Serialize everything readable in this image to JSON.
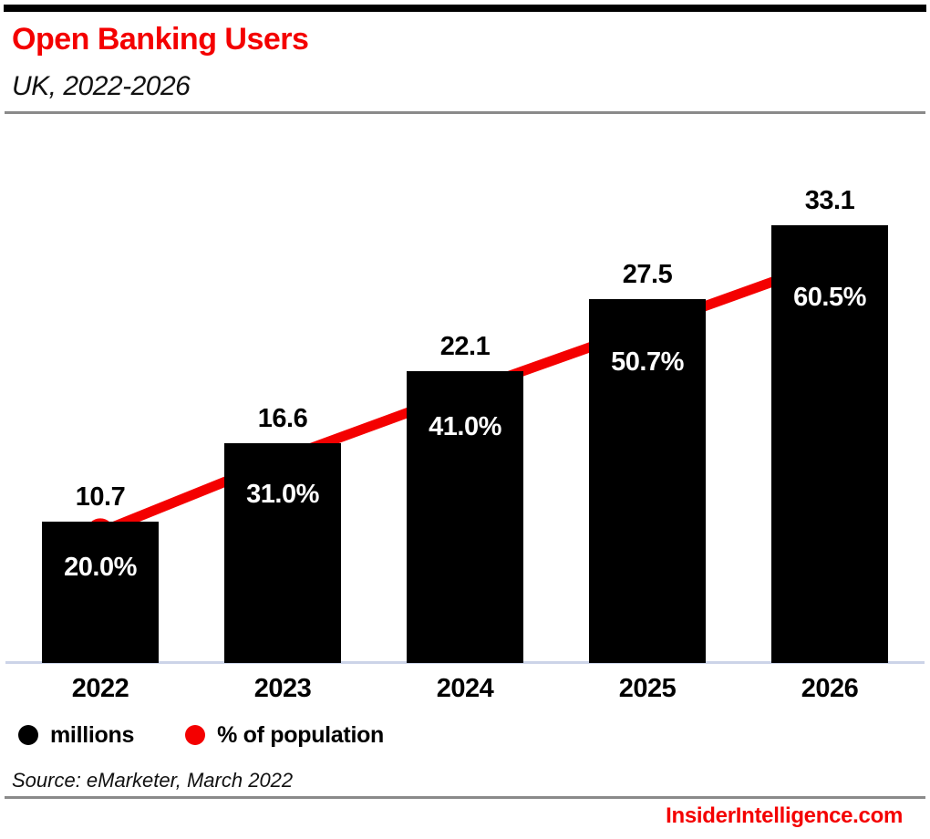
{
  "header": {
    "title": "Open Banking Users",
    "subtitle": "UK, 2022-2026"
  },
  "chart_data": {
    "type": "bar",
    "title": "Open Banking Users",
    "subtitle": "UK, 2022-2026",
    "categories": [
      "2022",
      "2023",
      "2024",
      "2025",
      "2026"
    ],
    "series": [
      {
        "name": "millions",
        "type": "bar",
        "color": "#000000",
        "values": [
          10.7,
          16.6,
          22.1,
          27.5,
          33.1
        ],
        "labels": [
          "10.7",
          "16.6",
          "22.1",
          "27.5",
          "33.1"
        ]
      },
      {
        "name": "% of population",
        "type": "line",
        "color": "#f40000",
        "values": [
          20.0,
          31.0,
          41.0,
          50.7,
          60.5
        ],
        "labels": [
          "20.0%",
          "31.0%",
          "41.0%",
          "50.7%",
          "60.5%"
        ]
      }
    ],
    "ylim": [
      0,
      35
    ],
    "y2lim": [
      0,
      70
    ],
    "grid": false,
    "legend_position": "bottom"
  },
  "legend": {
    "items": [
      {
        "label": "millions",
        "color": "#000000"
      },
      {
        "label": "% of population",
        "color": "#f40000"
      }
    ]
  },
  "source": "Source: eMarketer, March 2022",
  "footer": {
    "site": "InsiderIntelligence.com"
  },
  "colors": {
    "accent_red": "#f40000",
    "bar_black": "#000000",
    "axis_line": "#ccd4e8",
    "divider_gray": "#8a8a8a",
    "background": "#ffffff"
  }
}
